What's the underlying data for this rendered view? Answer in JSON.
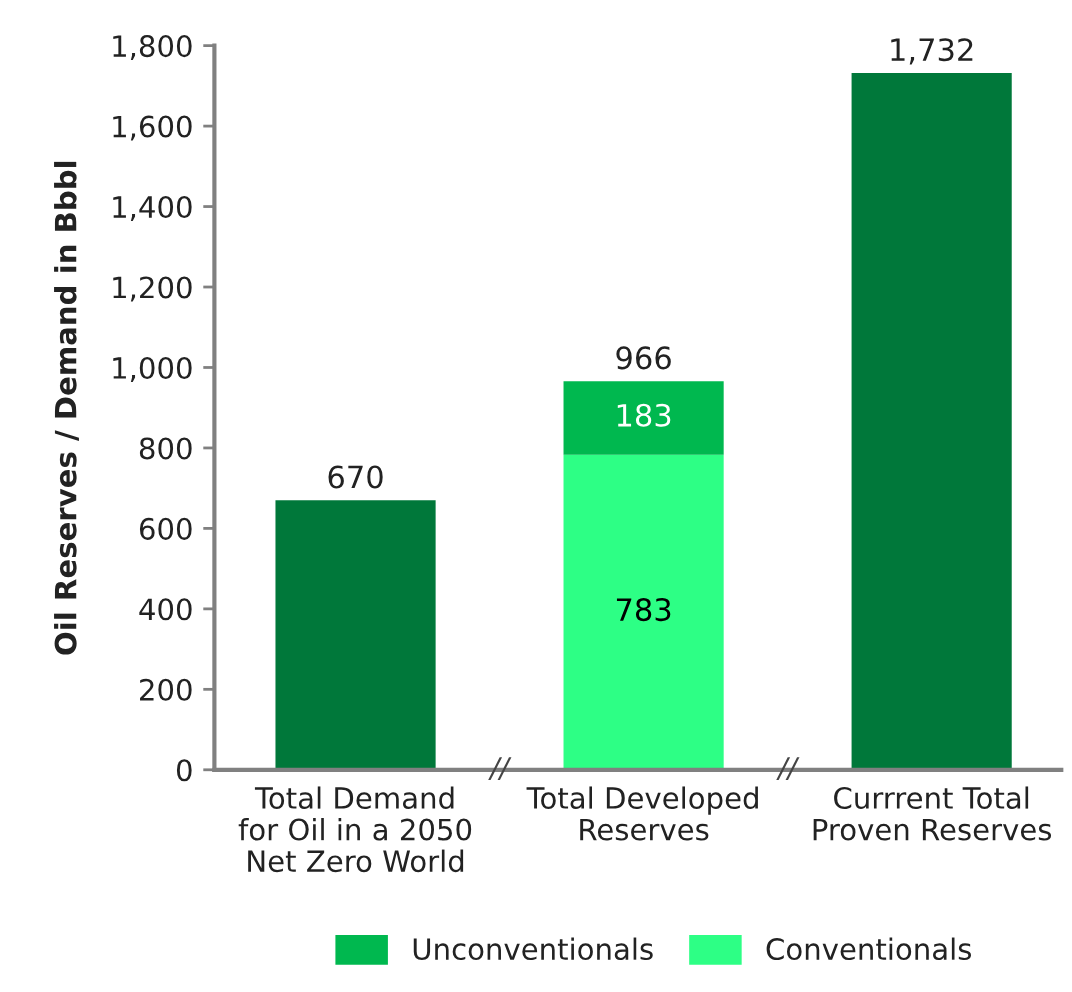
{
  "chart_data": {
    "type": "bar",
    "stacked": true,
    "ylabel": "Oil Reserves / Demand in Bbbl",
    "categories": [
      "Total Demand\nfor Oil in a 2050\nNet Zero World",
      "Total Developed\nReserves",
      "Currrent Total\nProven Reserves"
    ],
    "series": [
      {
        "color": "#00783a",
        "values": [
          670,
          null,
          1732
        ]
      },
      {
        "name": "Conventionals",
        "color": "#2dff85",
        "values": [
          null,
          783,
          null
        ],
        "value_labels": [
          null,
          "783",
          null
        ]
      },
      {
        "name": "Unconventionals",
        "color": "#00b84f",
        "values": [
          null,
          183,
          null
        ],
        "value_labels": [
          null,
          "183",
          null
        ]
      }
    ],
    "totals": [
      "670",
      "966",
      "1,732"
    ],
    "ylim": [
      0,
      1800
    ],
    "yticks": [
      0,
      200,
      400,
      600,
      800,
      {
        "value": 1000,
        "label": "1,000"
      },
      {
        "value": 1200,
        "label": "1,200"
      },
      {
        "value": 1400,
        "label": "1,400"
      },
      {
        "value": 1600,
        "label": "1,600"
      },
      {
        "value": 1800,
        "label": "1,800"
      }
    ],
    "legend": "bottom",
    "annotations": [
      "//",
      "//"
    ]
  }
}
